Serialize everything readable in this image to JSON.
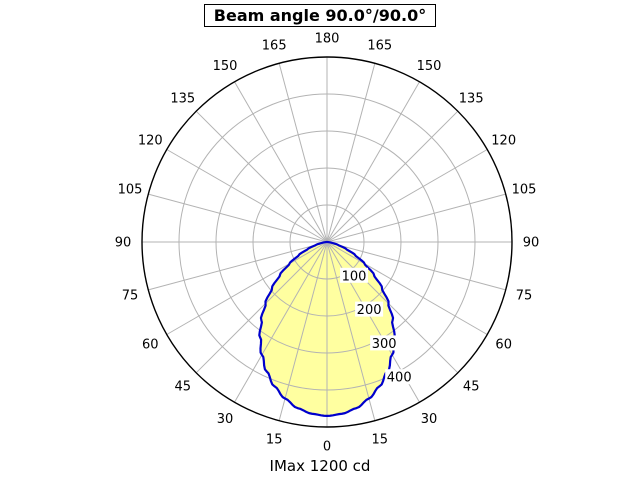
{
  "chart_data": {
    "type": "polar",
    "title": "Beam angle 90.0°/90.0°",
    "caption": "IMax 1200 cd",
    "units": "cd",
    "imax_cd": 1200,
    "beam_angle_deg": [
      90.0,
      90.0
    ],
    "angle_ticks_deg": [
      0,
      15,
      30,
      45,
      60,
      75,
      90,
      105,
      120,
      135,
      150,
      165,
      180
    ],
    "radial_ticks": [
      100,
      200,
      300,
      400
    ],
    "r_max": 500,
    "grid_on": true,
    "grid_color": "#b3b3b3",
    "outer_circle_color": "#000000",
    "curve_color": "#0000cc",
    "fill_color": "#ffffa0",
    "profile": {
      "symmetric": true,
      "angles_deg": [
        0,
        5,
        10,
        15,
        20,
        25,
        30,
        35,
        40,
        45,
        50,
        55,
        60,
        65,
        70,
        75,
        80,
        85,
        90
      ],
      "values": [
        470,
        466,
        456,
        438,
        415,
        386,
        352,
        315,
        276,
        235,
        194,
        155,
        117,
        84,
        55,
        31,
        14,
        4,
        0
      ]
    }
  }
}
